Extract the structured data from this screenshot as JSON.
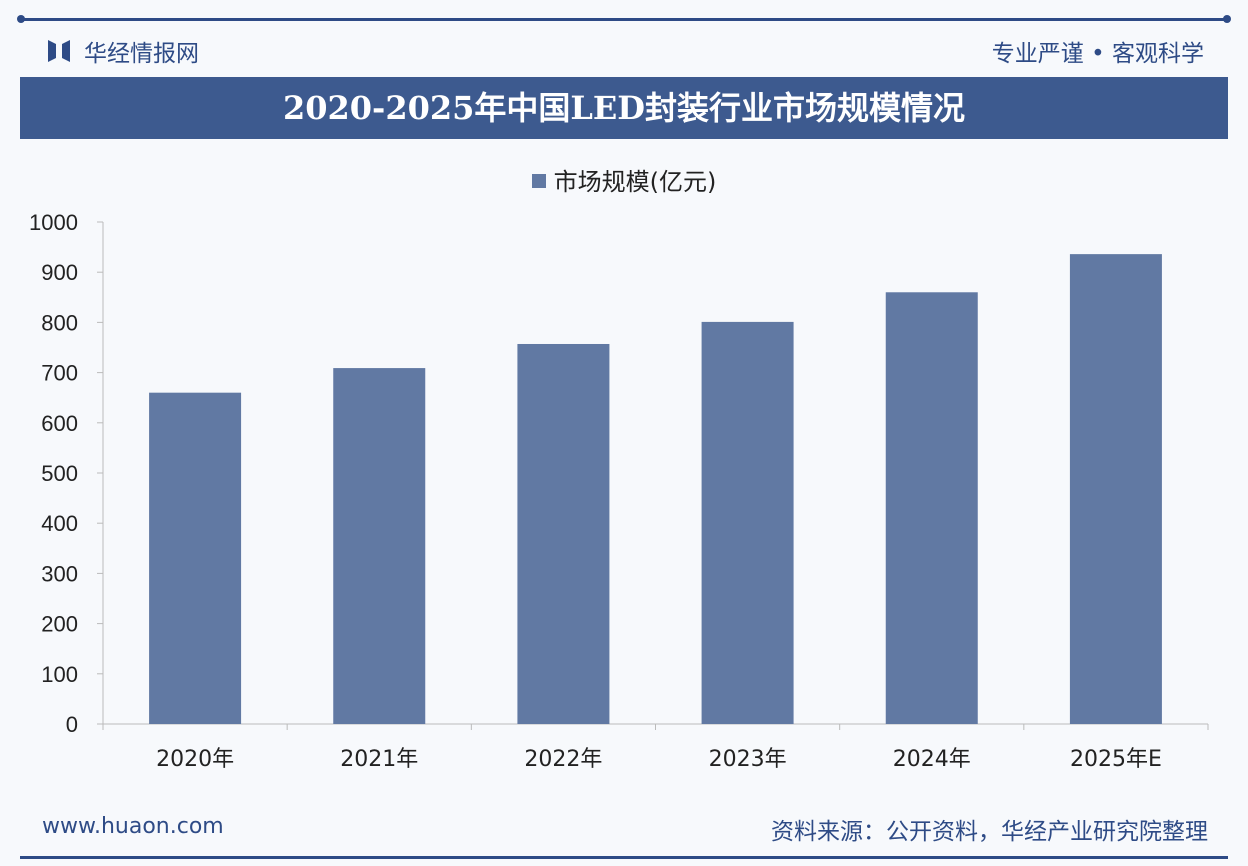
{
  "header": {
    "brand": "华经情报网",
    "slogan": "专业严谨 • 客观科学"
  },
  "colors": {
    "brand": "#2e4b86",
    "title_bar": "#3d5a8f",
    "bar": "#6179a3"
  },
  "footer": {
    "url": "www.huaon.com",
    "source": "资料来源：公开资料，华经产业研究院整理"
  },
  "chart_data": {
    "type": "bar",
    "title": "2020-2025年中国LED封装行业市场规模情况",
    "categories": [
      "2020年",
      "2021年",
      "2022年",
      "2023年",
      "2024年",
      "2025年E"
    ],
    "series": [
      {
        "name": "市场规模(亿元)",
        "values": [
          660,
          709,
          757,
          801,
          860,
          936
        ]
      }
    ],
    "ylim": [
      0,
      1000
    ],
    "yticks": [
      0,
      100,
      200,
      300,
      400,
      500,
      600,
      700,
      800,
      900,
      1000
    ],
    "legend": "top",
    "grid": false
  }
}
